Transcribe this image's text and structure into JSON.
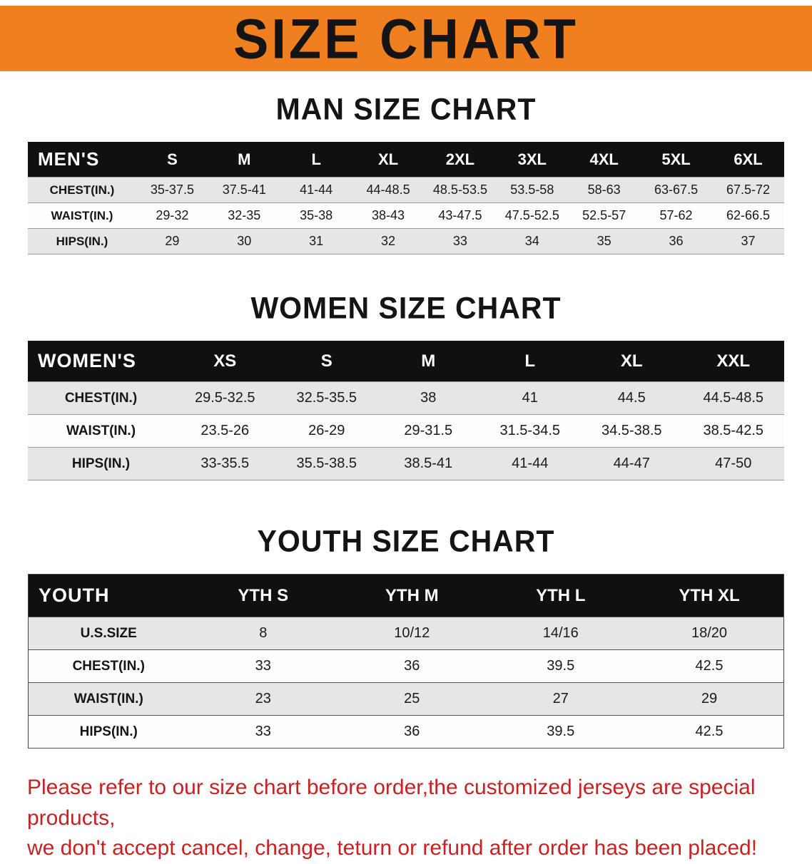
{
  "banner": {
    "title": "SIZE CHART"
  },
  "colors": {
    "banner_bg": "#f0801f",
    "table_header_bg": "#101010",
    "row_alt_bg": "#e6e6e6",
    "notice_text": "#c82121"
  },
  "sections": [
    {
      "heading": "MAN SIZE CHART",
      "table": {
        "header": [
          "MEN'S",
          "S",
          "M",
          "L",
          "XL",
          "2XL",
          "3XL",
          "4XL",
          "5XL",
          "6XL"
        ],
        "rows": [
          {
            "label": "CHEST(IN.)",
            "values": [
              "35-37.5",
              "37.5-41",
              "41-44",
              "44-48.5",
              "48.5-53.5",
              "53.5-58",
              "58-63",
              "63-67.5",
              "67.5-72"
            ]
          },
          {
            "label": "WAIST(IN.)",
            "values": [
              "29-32",
              "32-35",
              "35-38",
              "38-43",
              "43-47.5",
              "47.5-52.5",
              "52.5-57",
              "57-62",
              "62-66.5"
            ]
          },
          {
            "label": "HIPS(IN.)",
            "values": [
              "29",
              "30",
              "31",
              "32",
              "33",
              "34",
              "35",
              "36",
              "37"
            ]
          }
        ]
      }
    },
    {
      "heading": "WOMEN SIZE CHART",
      "table": {
        "header": [
          "WOMEN'S",
          "XS",
          "S",
          "M",
          "L",
          "XL",
          "XXL"
        ],
        "rows": [
          {
            "label": "CHEST(IN.)",
            "values": [
              "29.5-32.5",
              "32.5-35.5",
              "38",
              "41",
              "44.5",
              "44.5-48.5"
            ]
          },
          {
            "label": "WAIST(IN.)",
            "values": [
              "23.5-26",
              "26-29",
              "29-31.5",
              "31.5-34.5",
              "34.5-38.5",
              "38.5-42.5"
            ]
          },
          {
            "label": "HIPS(IN.)",
            "values": [
              "33-35.5",
              "35.5-38.5",
              "38.5-41",
              "41-44",
              "44-47",
              "47-50"
            ]
          }
        ]
      }
    },
    {
      "heading": "YOUTH SIZE CHART",
      "table": {
        "header": [
          "YOUTH",
          "YTH S",
          "YTH M",
          "YTH L",
          "YTH XL"
        ],
        "rows": [
          {
            "label": "U.S.SIZE",
            "values": [
              "8",
              "10/12",
              "14/16",
              "18/20"
            ]
          },
          {
            "label": "CHEST(IN.)",
            "values": [
              "33",
              "36",
              "39.5",
              "42.5"
            ]
          },
          {
            "label": "WAIST(IN.)",
            "values": [
              "23",
              "25",
              "27",
              "29"
            ]
          },
          {
            "label": "HIPS(IN.)",
            "values": [
              "33",
              "36",
              "39.5",
              "42.5"
            ]
          }
        ]
      }
    }
  ],
  "notice": {
    "line1": "Please refer to our size chart before order,the customized jerseys are special products,",
    "line2": "we don't accept cancel, change, teturn or refund after order has been placed!"
  }
}
